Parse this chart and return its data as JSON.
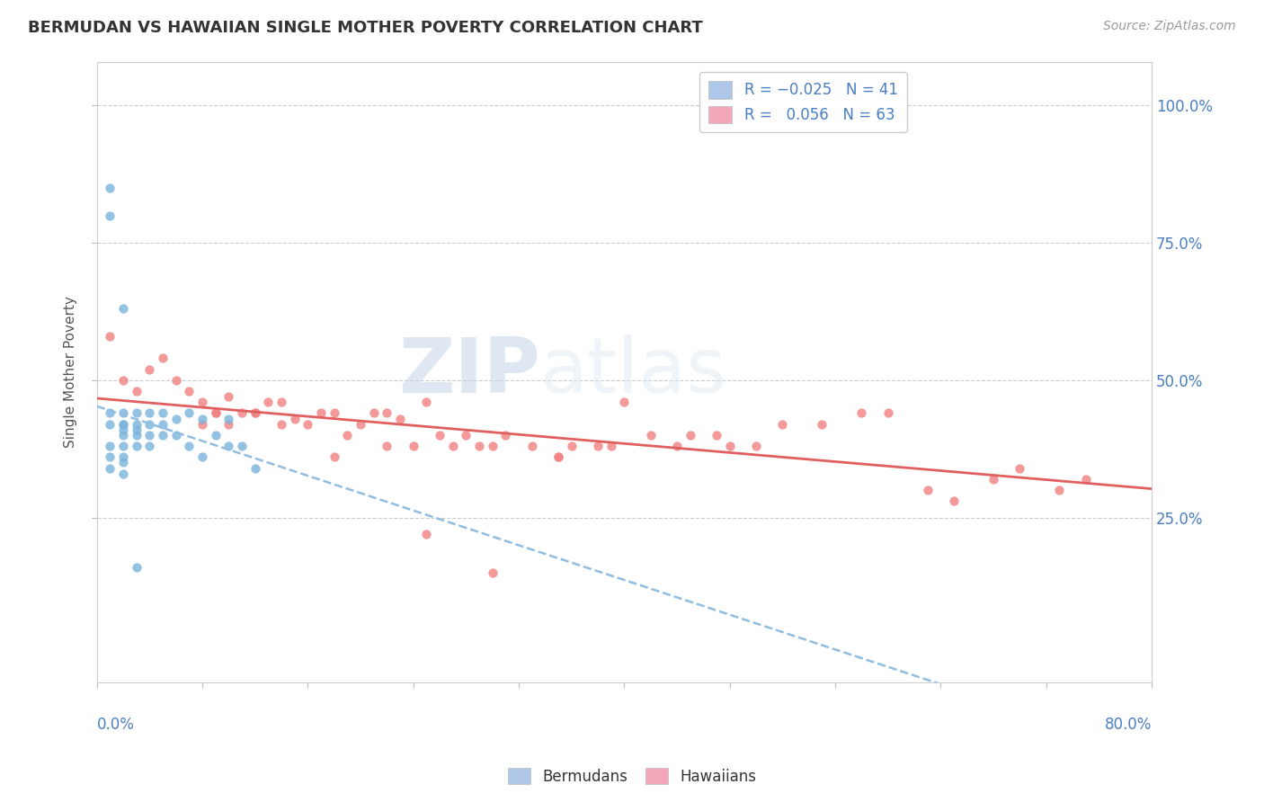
{
  "title": "BERMUDAN VS HAWAIIAN SINGLE MOTHER POVERTY CORRELATION CHART",
  "source_text": "Source: ZipAtlas.com",
  "ylabel": "Single Mother Poverty",
  "legend_entries": [
    {
      "R_label": "-0.025",
      "N": 41,
      "patch_color": "#aec6e8"
    },
    {
      "R_label": "0.056",
      "N": 63,
      "patch_color": "#f4a7b9"
    }
  ],
  "bermudan_x": [
    0.01,
    0.01,
    0.01,
    0.01,
    0.01,
    0.02,
    0.02,
    0.02,
    0.02,
    0.02,
    0.02,
    0.02,
    0.03,
    0.03,
    0.03,
    0.03,
    0.03,
    0.04,
    0.04,
    0.04,
    0.04,
    0.05,
    0.05,
    0.05,
    0.06,
    0.06,
    0.07,
    0.07,
    0.08,
    0.08,
    0.09,
    0.1,
    0.1,
    0.11,
    0.12,
    0.01,
    0.01,
    0.02,
    0.02,
    0.02,
    0.03
  ],
  "bermudan_y": [
    0.85,
    0.8,
    0.44,
    0.42,
    0.38,
    0.63,
    0.44,
    0.42,
    0.42,
    0.41,
    0.4,
    0.38,
    0.44,
    0.42,
    0.41,
    0.4,
    0.38,
    0.44,
    0.42,
    0.4,
    0.38,
    0.44,
    0.42,
    0.4,
    0.43,
    0.4,
    0.44,
    0.38,
    0.43,
    0.36,
    0.4,
    0.43,
    0.38,
    0.38,
    0.34,
    0.36,
    0.34,
    0.36,
    0.35,
    0.33,
    0.16
  ],
  "hawaiian_x": [
    0.01,
    0.02,
    0.03,
    0.04,
    0.05,
    0.06,
    0.07,
    0.08,
    0.09,
    0.1,
    0.11,
    0.12,
    0.13,
    0.14,
    0.15,
    0.16,
    0.17,
    0.18,
    0.19,
    0.2,
    0.21,
    0.22,
    0.23,
    0.24,
    0.25,
    0.26,
    0.27,
    0.28,
    0.29,
    0.3,
    0.31,
    0.33,
    0.35,
    0.36,
    0.38,
    0.39,
    0.4,
    0.42,
    0.44,
    0.45,
    0.47,
    0.48,
    0.5,
    0.52,
    0.55,
    0.58,
    0.6,
    0.63,
    0.65,
    0.68,
    0.7,
    0.73,
    0.75,
    0.08,
    0.09,
    0.1,
    0.12,
    0.14,
    0.18,
    0.22,
    0.25,
    0.3,
    0.35
  ],
  "hawaiian_y": [
    0.58,
    0.5,
    0.48,
    0.52,
    0.54,
    0.5,
    0.48,
    0.46,
    0.44,
    0.47,
    0.44,
    0.44,
    0.46,
    0.46,
    0.43,
    0.42,
    0.44,
    0.44,
    0.4,
    0.42,
    0.44,
    0.44,
    0.43,
    0.38,
    0.46,
    0.4,
    0.38,
    0.4,
    0.38,
    0.38,
    0.4,
    0.38,
    0.36,
    0.38,
    0.38,
    0.38,
    0.46,
    0.4,
    0.38,
    0.4,
    0.4,
    0.38,
    0.38,
    0.42,
    0.42,
    0.44,
    0.44,
    0.3,
    0.28,
    0.32,
    0.34,
    0.3,
    0.32,
    0.42,
    0.44,
    0.42,
    0.44,
    0.42,
    0.36,
    0.38,
    0.22,
    0.15,
    0.36
  ],
  "xlim": [
    0.0,
    0.8
  ],
  "ylim": [
    -0.05,
    1.08
  ],
  "yticks": [
    0.25,
    0.5,
    0.75,
    1.0
  ],
  "ytick_labels": [
    "25.0%",
    "50.0%",
    "75.0%",
    "100.0%"
  ],
  "watermark_zip": "ZIP",
  "watermark_atlas": "atlas",
  "bg_color": "#ffffff",
  "grid_color": "#cccccc",
  "bermuda_dot_color": "#7ab3dc",
  "hawaii_dot_color": "#f08080",
  "bermuda_line_color": "#90bde0",
  "hawaii_line_color": "#e06060",
  "axis_label_color": "#4a7fc1",
  "title_color": "#333333",
  "source_color": "#999999",
  "ylabel_color": "#555555"
}
